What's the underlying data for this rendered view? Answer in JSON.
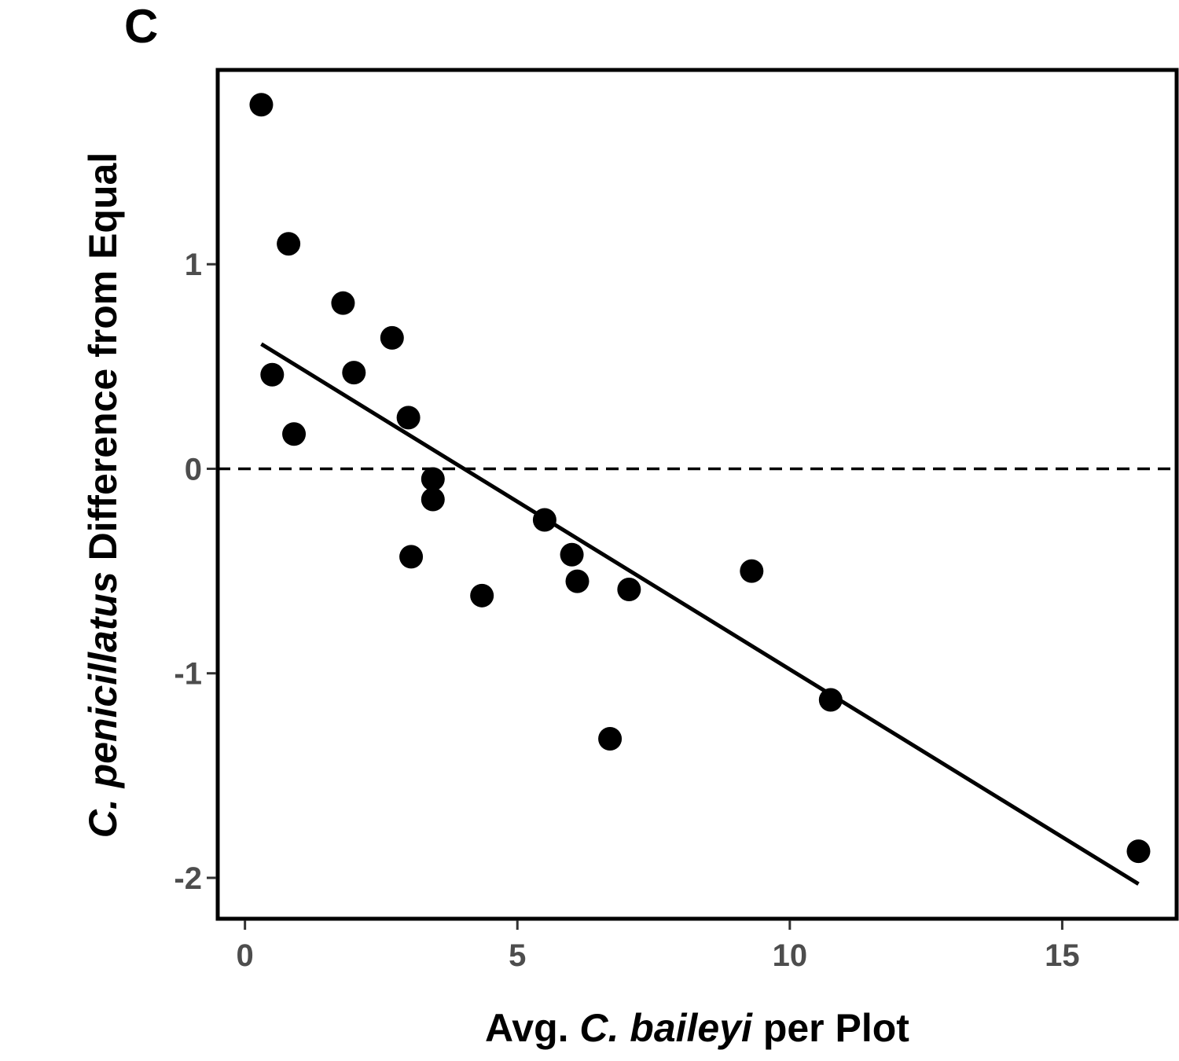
{
  "chart_data": {
    "type": "scatter",
    "panel_label": "C",
    "xlabel_parts": [
      {
        "text": "Avg. ",
        "italic": false
      },
      {
        "text": "C. baileyi",
        "italic": true
      },
      {
        "text": " per Plot",
        "italic": false
      }
    ],
    "ylabel_parts": [
      {
        "text": "C. penicillatus",
        "italic": true
      },
      {
        "text": " Difference from Equal",
        "italic": false
      }
    ],
    "xlim": [
      -0.5,
      17.1
    ],
    "ylim": [
      -2.2,
      1.95
    ],
    "x_ticks": [
      0,
      5,
      10,
      15
    ],
    "x_tick_labels": [
      "0",
      "5",
      "10",
      "15"
    ],
    "y_ticks": [
      -2,
      -1,
      0,
      1
    ],
    "y_tick_labels": [
      "-2",
      "-1",
      "0",
      "1"
    ],
    "grid": false,
    "reference_line": {
      "y": 0,
      "style": "dashed"
    },
    "points": [
      {
        "x": 0.3,
        "y": 1.78
      },
      {
        "x": 0.8,
        "y": 1.1
      },
      {
        "x": 0.5,
        "y": 0.46
      },
      {
        "x": 0.9,
        "y": 0.17
      },
      {
        "x": 1.8,
        "y": 0.81
      },
      {
        "x": 2.0,
        "y": 0.47
      },
      {
        "x": 2.7,
        "y": 0.64
      },
      {
        "x": 3.0,
        "y": 0.25
      },
      {
        "x": 3.05,
        "y": -0.43
      },
      {
        "x": 3.45,
        "y": -0.05
      },
      {
        "x": 3.45,
        "y": -0.15
      },
      {
        "x": 4.35,
        "y": -0.62
      },
      {
        "x": 5.5,
        "y": -0.25
      },
      {
        "x": 6.0,
        "y": -0.42
      },
      {
        "x": 6.1,
        "y": -0.55
      },
      {
        "x": 6.7,
        "y": -1.32
      },
      {
        "x": 7.05,
        "y": -0.59
      },
      {
        "x": 9.3,
        "y": -0.5
      },
      {
        "x": 10.75,
        "y": -1.13
      },
      {
        "x": 16.4,
        "y": -1.87
      }
    ],
    "fit_line": {
      "x": [
        0.3,
        16.4
      ],
      "y": [
        0.61,
        -2.03
      ]
    },
    "colors": {
      "points": "#000000",
      "line": "#000000",
      "ticks": "#4d4d4d"
    }
  }
}
